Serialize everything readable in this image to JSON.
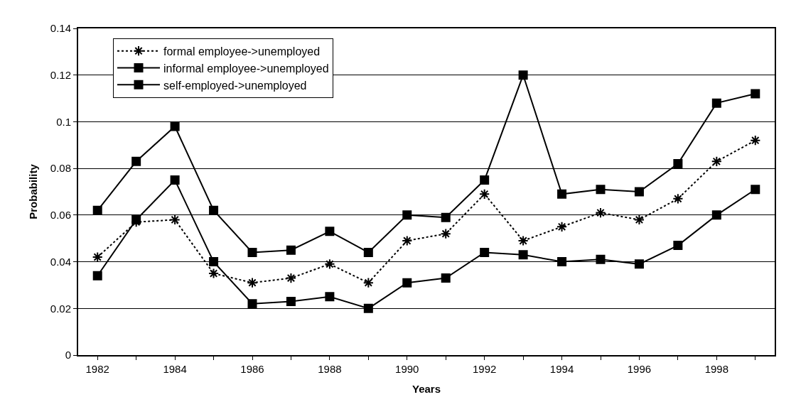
{
  "chart_data": {
    "type": "line",
    "xlabel": "Years",
    "ylabel": "Probability",
    "x": [
      1982,
      1983,
      1984,
      1985,
      1986,
      1987,
      1988,
      1989,
      1990,
      1991,
      1992,
      1993,
      1994,
      1995,
      1996,
      1997,
      1998,
      1999
    ],
    "series": [
      {
        "name": "formal employee->unemployed",
        "color": "#000000",
        "marker": "cross",
        "line_style": "dotted",
        "values": [
          0.042,
          0.057,
          0.058,
          0.035,
          0.031,
          0.033,
          0.039,
          0.031,
          0.049,
          0.052,
          0.069,
          0.049,
          0.055,
          0.061,
          0.058,
          0.067,
          0.083,
          0.092
        ]
      },
      {
        "name": "informal employee->unemployed",
        "color": "#000000",
        "marker": "square",
        "line_style": "solid",
        "values": [
          0.062,
          0.083,
          0.098,
          0.062,
          0.044,
          0.045,
          0.053,
          0.044,
          0.06,
          0.059,
          0.075,
          0.12,
          0.069,
          0.071,
          0.07,
          0.082,
          0.108,
          0.112
        ]
      },
      {
        "name": "self-employed->unemployed",
        "color": "#000000",
        "marker": "square",
        "line_style": "solid",
        "values": [
          0.034,
          0.058,
          0.075,
          0.04,
          0.022,
          0.023,
          0.025,
          0.02,
          0.031,
          0.033,
          0.044,
          0.043,
          0.04,
          0.041,
          0.039,
          0.047,
          0.06,
          0.071
        ]
      }
    ],
    "xlim": [
      1981.5,
      1999.5
    ],
    "xticks": [
      1982,
      {
        "value": 1983,
        "label": null
      },
      1984,
      {
        "value": 1985,
        "label": null
      },
      1986,
      {
        "value": 1987,
        "label": null
      },
      1988,
      {
        "value": 1989,
        "label": null
      },
      1990,
      {
        "value": 1991,
        "label": null
      },
      1992,
      {
        "value": 1993,
        "label": null
      },
      1994,
      {
        "value": 1995,
        "label": null
      },
      1996,
      {
        "value": 1997,
        "label": null
      },
      1998,
      {
        "value": 1999,
        "label": null
      }
    ],
    "ylim": [
      0,
      0.14
    ],
    "yticks": [
      0,
      0.02,
      0.04,
      0.06,
      0.08,
      0.1,
      0.12,
      0.14
    ],
    "grid": "y",
    "legend": "top left"
  }
}
